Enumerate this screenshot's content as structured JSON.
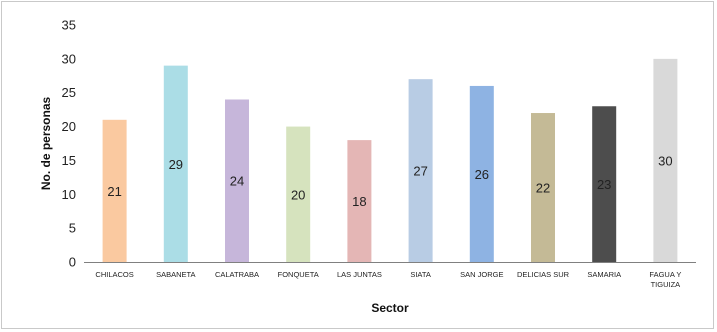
{
  "chart_data": {
    "type": "bar",
    "categories": [
      "CHILACOS",
      "SABANETA",
      "CALATRABA",
      "FONQUETA",
      "LAS JUNTAS",
      "SIATA",
      "SAN JORGE",
      "DELICIAS SUR",
      "SAMARIA",
      "FAGUA Y TIGUIZA"
    ],
    "category_lines": [
      [
        "CHILACOS"
      ],
      [
        "SABANETA"
      ],
      [
        "CALATRABA"
      ],
      [
        "FONQUETA"
      ],
      [
        "LAS JUNTAS"
      ],
      [
        "SIATA"
      ],
      [
        "SAN JORGE"
      ],
      [
        "DELICIAS SUR"
      ],
      [
        "SAMARIA"
      ],
      [
        "FAGUA Y",
        "TIGUIZA"
      ]
    ],
    "values": [
      21,
      29,
      24,
      20,
      18,
      27,
      26,
      22,
      23,
      30
    ],
    "data_labels": [
      "21",
      "29",
      "24",
      "20",
      "18",
      "27",
      "26",
      "22",
      "23",
      "30"
    ],
    "colors": [
      "#FAC9A0",
      "#ABDDE6",
      "#C6B6DA",
      "#D6E3BE",
      "#E4B6B5",
      "#B8CCE4",
      "#8EB3E3",
      "#C4BA96",
      "#4D4D4D",
      "#D9D9D9"
    ],
    "xlabel": "Sector",
    "ylabel": "No. de personas",
    "ylim": [
      0,
      35
    ],
    "yticks": [
      0,
      5,
      10,
      15,
      20,
      25,
      30,
      35
    ],
    "grid": false,
    "legend": "none"
  }
}
